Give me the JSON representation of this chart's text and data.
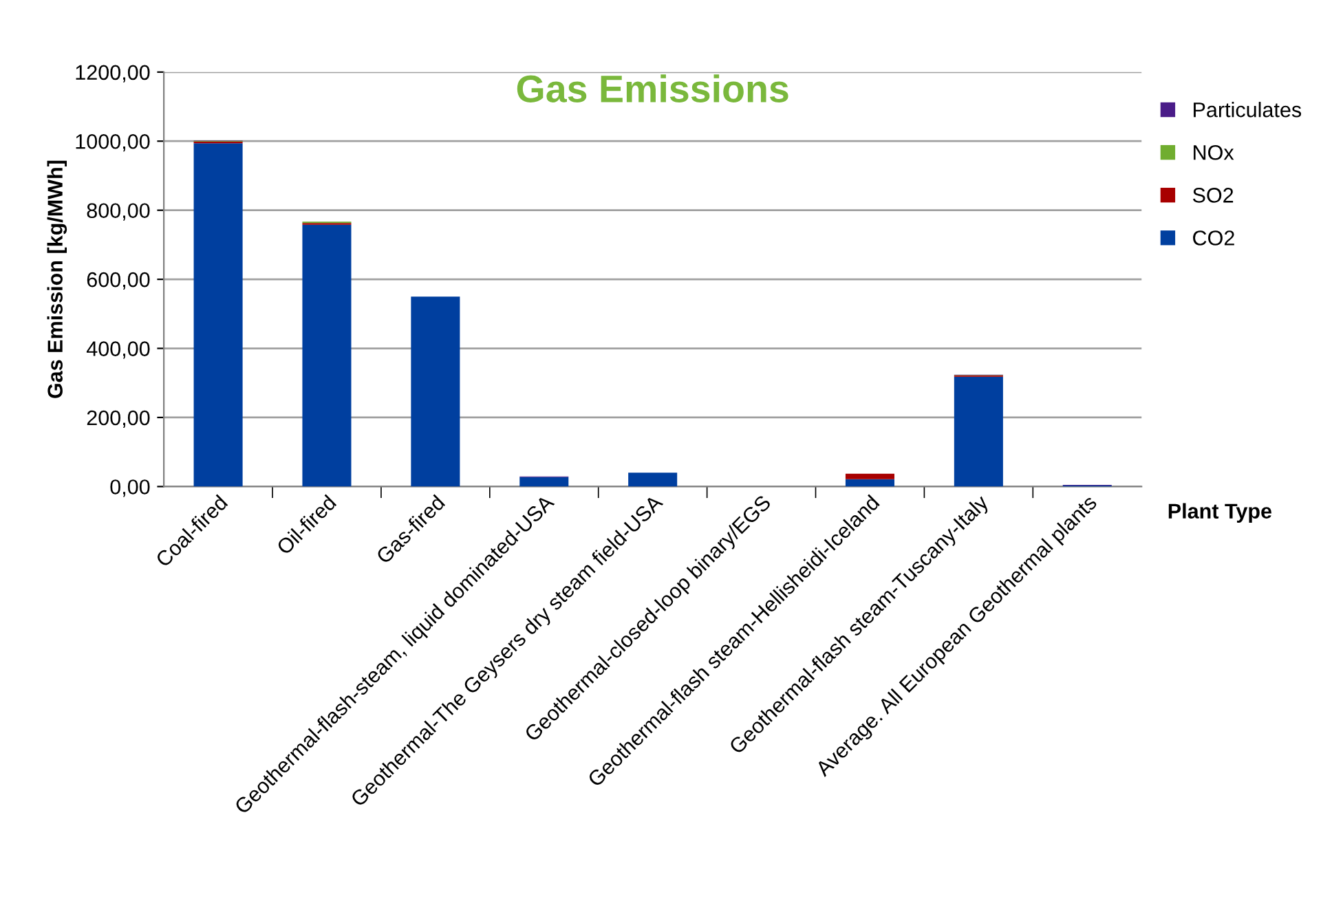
{
  "chart_data": {
    "type": "bar",
    "stacked": true,
    "title": "Gas Emissions",
    "xlabel": "Plant Type",
    "ylabel": "Gas Emission [kg/MWh]",
    "categories": [
      "Coal-fired",
      "Oil-fired",
      "Gas-fired",
      "Geothermal-flash-steam, liquid dominated-USA",
      "Geothermal-The Geysers dry steam field-USA",
      "Geothermal-closed-loop binary/EGS",
      "Geothermal-flash steam-Hellisheidi-Iceland",
      "Geothermal-flash steam-Tuscany-Italy",
      "Average. All European Geothermal plants"
    ],
    "series": [
      {
        "name": "CO2",
        "color": "#003f9f",
        "values": [
          994,
          758,
          550,
          27,
          40,
          0,
          21,
          318,
          3
        ]
      },
      {
        "name": "SO2",
        "color": "#a80000",
        "values": [
          5,
          5,
          0,
          0,
          0,
          0,
          16,
          4,
          0
        ]
      },
      {
        "name": "NOx",
        "color": "#70ad2f",
        "values": [
          2,
          4,
          null,
          0,
          0,
          0,
          0,
          1,
          0
        ]
      },
      {
        "name": "Particulates",
        "color": "#4a1c88",
        "values": [
          1,
          null,
          0,
          2,
          0,
          0,
          0,
          1,
          2
        ]
      }
    ],
    "ylim": [
      0,
      1200
    ],
    "yticks": [
      {
        "value": 0,
        "label": "0,00"
      },
      {
        "value": 200,
        "label": "200,00"
      },
      {
        "value": 400,
        "label": "400,00"
      },
      {
        "value": 600,
        "label": "600,00"
      },
      {
        "value": 800,
        "label": "800,00"
      },
      {
        "value": 1000,
        "label": "1000,00"
      },
      {
        "value": 1200,
        "label": "1200,00"
      }
    ],
    "grid": "y",
    "legend": "right"
  }
}
